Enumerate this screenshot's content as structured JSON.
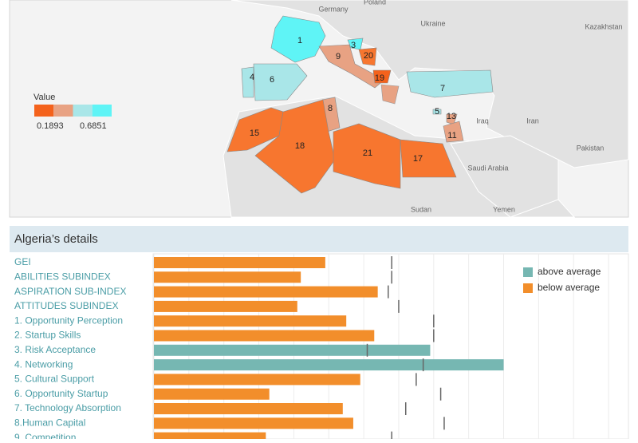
{
  "chart_data": [
    {
      "type": "map",
      "legend_title": "Value",
      "legend_min": 0.1893,
      "legend_max": 0.6851,
      "legend_colors": [
        "#f4621c",
        "#e8a283",
        "#a9e6e8",
        "#5ff4f6"
      ],
      "place_names": [
        "Germany",
        "Poland",
        "Ukraine",
        "Kazakhstan",
        "Iraq",
        "Iran",
        "Saudi Arabia",
        "Sudan",
        "Yemen",
        "Pakistan"
      ],
      "regions": [
        {
          "rank": 1,
          "color": "#5ff4f6"
        },
        {
          "rank": 9,
          "color": "#e8a283"
        },
        {
          "rank": 3,
          "color": "#5ff4f6"
        },
        {
          "rank": 20,
          "color": "#f7762f"
        },
        {
          "rank": 19,
          "color": "#f4621c"
        },
        {
          "rank": 4,
          "color": "#a9e6e8"
        },
        {
          "rank": 6,
          "color": "#a9e6e8"
        },
        {
          "rank": 7,
          "color": "#a9e6e8"
        },
        {
          "rank": 8,
          "color": "#e8a283"
        },
        {
          "rank": 15,
          "color": "#f7762f"
        },
        {
          "rank": 18,
          "color": "#f7762f"
        },
        {
          "rank": 21,
          "color": "#f7762f"
        },
        {
          "rank": 17,
          "color": "#f7762f"
        },
        {
          "rank": 5,
          "color": "#a9e6e8"
        },
        {
          "rank": 13,
          "color": "#e8a283"
        },
        {
          "rank": 11,
          "color": "#e8a283"
        }
      ]
    },
    {
      "type": "bar",
      "title": "Algeria’s details",
      "categories": [
        "GEI",
        "ABILITIES SUBINDEX",
        "ASPIRATION SUB-INDEX",
        "ATTITUDES SUBINDEX",
        "1. Opportunity Perception",
        "2. Startup Skills",
        "3. Risk Acceptance",
        "4. Networking",
        "5. Cultural Support",
        "6. Opportunity Startup",
        "7. Technology Absorption",
        "8.Human Capital",
        "9. Competition"
      ],
      "values": [
        0.49,
        0.42,
        0.64,
        0.41,
        0.55,
        0.63,
        0.79,
        1.0,
        0.59,
        0.33,
        0.54,
        0.57,
        0.32
      ],
      "averages": [
        0.68,
        0.68,
        0.67,
        0.7,
        0.8,
        0.8,
        0.61,
        0.77,
        0.75,
        0.82,
        0.72,
        0.83,
        0.68
      ],
      "groups": [
        "below average",
        "below average",
        "below average",
        "below average",
        "below average",
        "below average",
        "above average",
        "above average",
        "below average",
        "below average",
        "below average",
        "below average",
        "below average"
      ],
      "legend": [
        {
          "name": "above average",
          "color": "#76b7b2"
        },
        {
          "name": "below average",
          "color": "#f28e2b"
        }
      ],
      "xlim": [
        0,
        1.35
      ],
      "xticks": [
        0,
        0.1,
        0.2,
        0.3,
        0.4,
        0.5,
        0.6,
        0.7,
        0.8,
        0.9,
        1.0,
        1.1,
        1.2,
        1.3
      ],
      "grid": true
    }
  ]
}
